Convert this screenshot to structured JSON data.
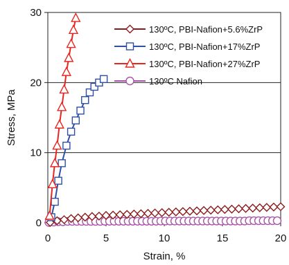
{
  "chart_data": {
    "type": "line",
    "xlabel": "Strain, %",
    "ylabel": "Stress, MPa",
    "xlim": [
      0,
      20
    ],
    "ylim": [
      0,
      30
    ],
    "xticks": [
      "0",
      "5",
      "10",
      "15",
      "20"
    ],
    "yticks": [
      "0",
      "10",
      "20",
      "30"
    ],
    "grid": "horizontal",
    "legend_position": "top-right",
    "series": [
      {
        "name": "130ºC, PBI-Nafion+5.6%ZrP",
        "color": "#8B1A1A",
        "marker": "diamond",
        "x": [
          0.2,
          0.8,
          1.4,
          2.0,
          2.6,
          3.2,
          3.8,
          4.4,
          5.0,
          5.6,
          6.2,
          6.8,
          7.4,
          8.0,
          8.6,
          9.2,
          9.8,
          10.4,
          11.0,
          11.6,
          12.2,
          12.8,
          13.4,
          14.0,
          14.6,
          15.2,
          15.8,
          16.4,
          17.0,
          17.6,
          18.2,
          18.8,
          19.4,
          20.0
        ],
        "y": [
          0.05,
          0.3,
          0.45,
          0.6,
          0.7,
          0.8,
          0.9,
          0.95,
          1.05,
          1.1,
          1.15,
          1.2,
          1.25,
          1.3,
          1.35,
          1.4,
          1.45,
          1.5,
          1.55,
          1.6,
          1.65,
          1.7,
          1.75,
          1.8,
          1.85,
          1.9,
          1.95,
          2.0,
          2.05,
          2.1,
          2.15,
          2.2,
          2.25,
          2.3
        ]
      },
      {
        "name": "130ºC, PBI-Nafion+17%ZrP",
        "color": "#2E4FA3",
        "marker": "square",
        "x": [
          0.3,
          0.6,
          0.9,
          1.2,
          1.6,
          2.0,
          2.4,
          2.8,
          3.2,
          3.6,
          4.0,
          4.4,
          4.8
        ],
        "y": [
          0.8,
          3.0,
          6.0,
          8.5,
          11.0,
          13.0,
          14.6,
          16.0,
          17.5,
          18.6,
          19.4,
          20.0,
          20.5
        ]
      },
      {
        "name": "130ºC, PBI-Nafion+27%ZrP",
        "color": "#E8251F",
        "marker": "triangle",
        "x": [
          0.15,
          0.4,
          0.6,
          0.8,
          1.0,
          1.2,
          1.4,
          1.6,
          1.8,
          2.0,
          2.2,
          2.4
        ],
        "y": [
          1.0,
          5.5,
          8.5,
          11.0,
          14.0,
          16.5,
          19.0,
          21.5,
          23.5,
          25.5,
          27.5,
          29.2
        ]
      },
      {
        "name": "130ºC Nafion",
        "color": "#A855A8",
        "marker": "circle",
        "x": [
          0.1,
          0.5,
          0.9,
          1.3,
          1.7,
          2.1,
          2.5,
          2.9,
          3.3,
          3.7,
          4.1,
          4.5,
          4.9,
          5.3,
          5.7,
          6.1,
          6.5,
          6.9,
          7.3,
          7.7,
          8.1,
          8.5,
          8.9,
          9.3,
          9.7,
          10.1,
          10.5,
          10.9,
          11.3,
          11.7,
          12.1,
          12.5,
          12.9,
          13.3,
          13.7,
          14.1,
          14.5,
          14.9,
          15.3,
          15.7,
          16.1,
          16.5,
          16.9,
          17.3,
          17.7,
          18.1,
          18.5,
          18.9,
          19.3,
          19.7
        ],
        "y": [
          0.05,
          0.1,
          0.15,
          0.15,
          0.2,
          0.2,
          0.2,
          0.2,
          0.2,
          0.2,
          0.2,
          0.2,
          0.22,
          0.22,
          0.22,
          0.22,
          0.22,
          0.22,
          0.22,
          0.22,
          0.22,
          0.22,
          0.22,
          0.22,
          0.25,
          0.25,
          0.25,
          0.25,
          0.25,
          0.25,
          0.25,
          0.25,
          0.25,
          0.25,
          0.25,
          0.25,
          0.25,
          0.25,
          0.25,
          0.25,
          0.25,
          0.25,
          0.25,
          0.3,
          0.3,
          0.3,
          0.3,
          0.3,
          0.3,
          0.3
        ]
      }
    ]
  }
}
